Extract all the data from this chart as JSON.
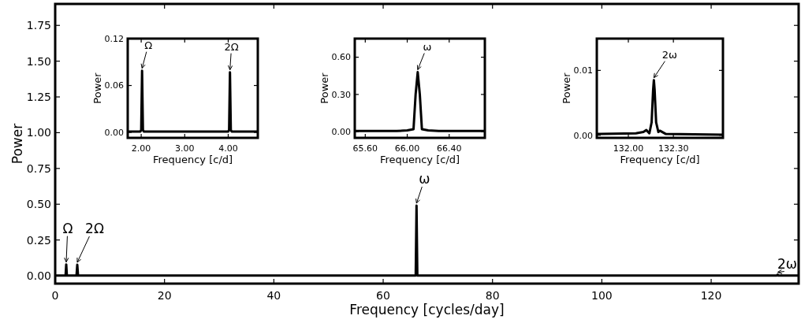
{
  "chart_data": [
    {
      "type": "line",
      "xlabel": "Frequency [cycles/day]",
      "ylabel": "Power",
      "xlim": [
        0,
        136
      ],
      "ylim": [
        -0.055,
        1.9
      ],
      "xticks": [
        0,
        20,
        40,
        60,
        80,
        100,
        120
      ],
      "yticks": [
        {
          "value": 0,
          "label": "0.00"
        },
        {
          "value": 0.25,
          "label": "0.25"
        },
        {
          "value": 0.5,
          "label": "0.50"
        },
        {
          "value": 0.75,
          "label": "0.75"
        },
        {
          "value": 1,
          "label": "1.00"
        },
        {
          "value": 1.25,
          "label": "1.25"
        },
        {
          "value": 1.5,
          "label": "1.50"
        },
        {
          "value": 1.75,
          "label": "1.75"
        }
      ],
      "marker": "none",
      "line_style": "solid",
      "series": [
        {
          "color": "#000000",
          "x": [
            0,
            1.9,
            2.02,
            2.14,
            3.9,
            4.04,
            4.18,
            65.95,
            66.1,
            66.25,
            132.0,
            132.17,
            132.3,
            136
          ],
          "values": [
            0.001,
            0.001,
            0.079,
            0.001,
            0.001,
            0.077,
            0.001,
            0.002,
            0.49,
            0.002,
            0.001,
            0.008,
            0.001,
            0.001
          ]
        }
      ],
      "annotations": [
        {
          "text": "Ω",
          "x": 2.02,
          "y": 0.079
        },
        {
          "text": "2Ω",
          "x": 4.04,
          "y": 0.077
        },
        {
          "text": "ω",
          "x": 66.1,
          "y": 0.49
        },
        {
          "text": "2ω",
          "x": 132.17,
          "y": 0.008
        }
      ]
    },
    {
      "type": "line",
      "xlabel": "Frequency [c/d]",
      "ylabel": "Power",
      "xlim": [
        1.69,
        4.68
      ],
      "ylim": [
        -0.007,
        0.12
      ],
      "xticks": [
        {
          "value": 2,
          "label": "2.00"
        },
        {
          "value": 3,
          "label": "3.00"
        },
        {
          "value": 4,
          "label": "4.00"
        }
      ],
      "yticks": [
        {
          "value": 0,
          "label": "0.00"
        },
        {
          "value": 0.06,
          "label": "0.06"
        },
        {
          "value": 0.12,
          "label": "0.12"
        }
      ],
      "marker": "none",
      "line_style": "solid",
      "series": [
        {
          "color": "#000000",
          "x": [
            1.69,
            1.98,
            2.0,
            2.02,
            2.04,
            2.06,
            4.0,
            4.02,
            4.04,
            4.06,
            4.08,
            4.68
          ],
          "values": [
            0.001,
            0.001,
            0.003,
            0.079,
            0.003,
            0.001,
            0.001,
            0.003,
            0.077,
            0.003,
            0.001,
            0.001
          ]
        }
      ],
      "annotations": [
        {
          "text": "Ω",
          "x": 2.02,
          "y": 0.079
        },
        {
          "text": "2Ω",
          "x": 4.04,
          "y": 0.077
        }
      ]
    },
    {
      "type": "line",
      "xlabel": "Frequency [c/d]",
      "ylabel": "Power",
      "xlim": [
        65.5,
        66.74
      ],
      "ylim": [
        -0.05,
        0.75
      ],
      "xticks": [
        {
          "value": 65.6,
          "label": "65.60"
        },
        {
          "value": 66,
          "label": "66.00"
        },
        {
          "value": 66.4,
          "label": "66.40"
        }
      ],
      "yticks": [
        {
          "value": 0,
          "label": "0.00"
        },
        {
          "value": 0.3,
          "label": "0.30"
        },
        {
          "value": 0.6,
          "label": "0.60"
        }
      ],
      "marker": "none",
      "line_style": "solid",
      "series": [
        {
          "color": "#000000",
          "x": [
            65.5,
            65.9,
            66.0,
            66.06,
            66.08,
            66.1,
            66.12,
            66.14,
            66.2,
            66.3,
            66.74
          ],
          "values": [
            0.005,
            0.005,
            0.01,
            0.02,
            0.3,
            0.48,
            0.3,
            0.02,
            0.01,
            0.005,
            0.005
          ]
        }
      ],
      "annotations": [
        {
          "text": "ω",
          "x": 66.1,
          "y": 0.48
        }
      ]
    },
    {
      "type": "line",
      "xlabel": "Frequency [c/d]",
      "ylabel": "Power",
      "xlim": [
        131.79,
        132.63
      ],
      "ylim": [
        -0.0004,
        0.0149
      ],
      "xticks": [
        {
          "value": 132,
          "label": "132.00"
        },
        {
          "value": 132.3,
          "label": "132.30"
        }
      ],
      "yticks": [
        {
          "value": 0,
          "label": "0.00"
        },
        {
          "value": 0.01,
          "label": "0.01"
        }
      ],
      "marker": "none",
      "line_style": "solid",
      "series": [
        {
          "color": "#000000",
          "x": [
            131.79,
            132.05,
            132.1,
            132.12,
            132.14,
            132.155,
            132.165,
            132.17,
            132.175,
            132.185,
            132.2,
            132.21,
            132.25,
            132.63
          ],
          "values": [
            0.0002,
            0.0003,
            0.0005,
            0.0008,
            0.0003,
            0.002,
            0.007,
            0.0085,
            0.007,
            0.002,
            0.0005,
            0.0007,
            0.0002,
            0.0001
          ]
        }
      ],
      "annotations": [
        {
          "text": "2ω",
          "x": 132.17,
          "y": 0.0085
        }
      ]
    }
  ]
}
